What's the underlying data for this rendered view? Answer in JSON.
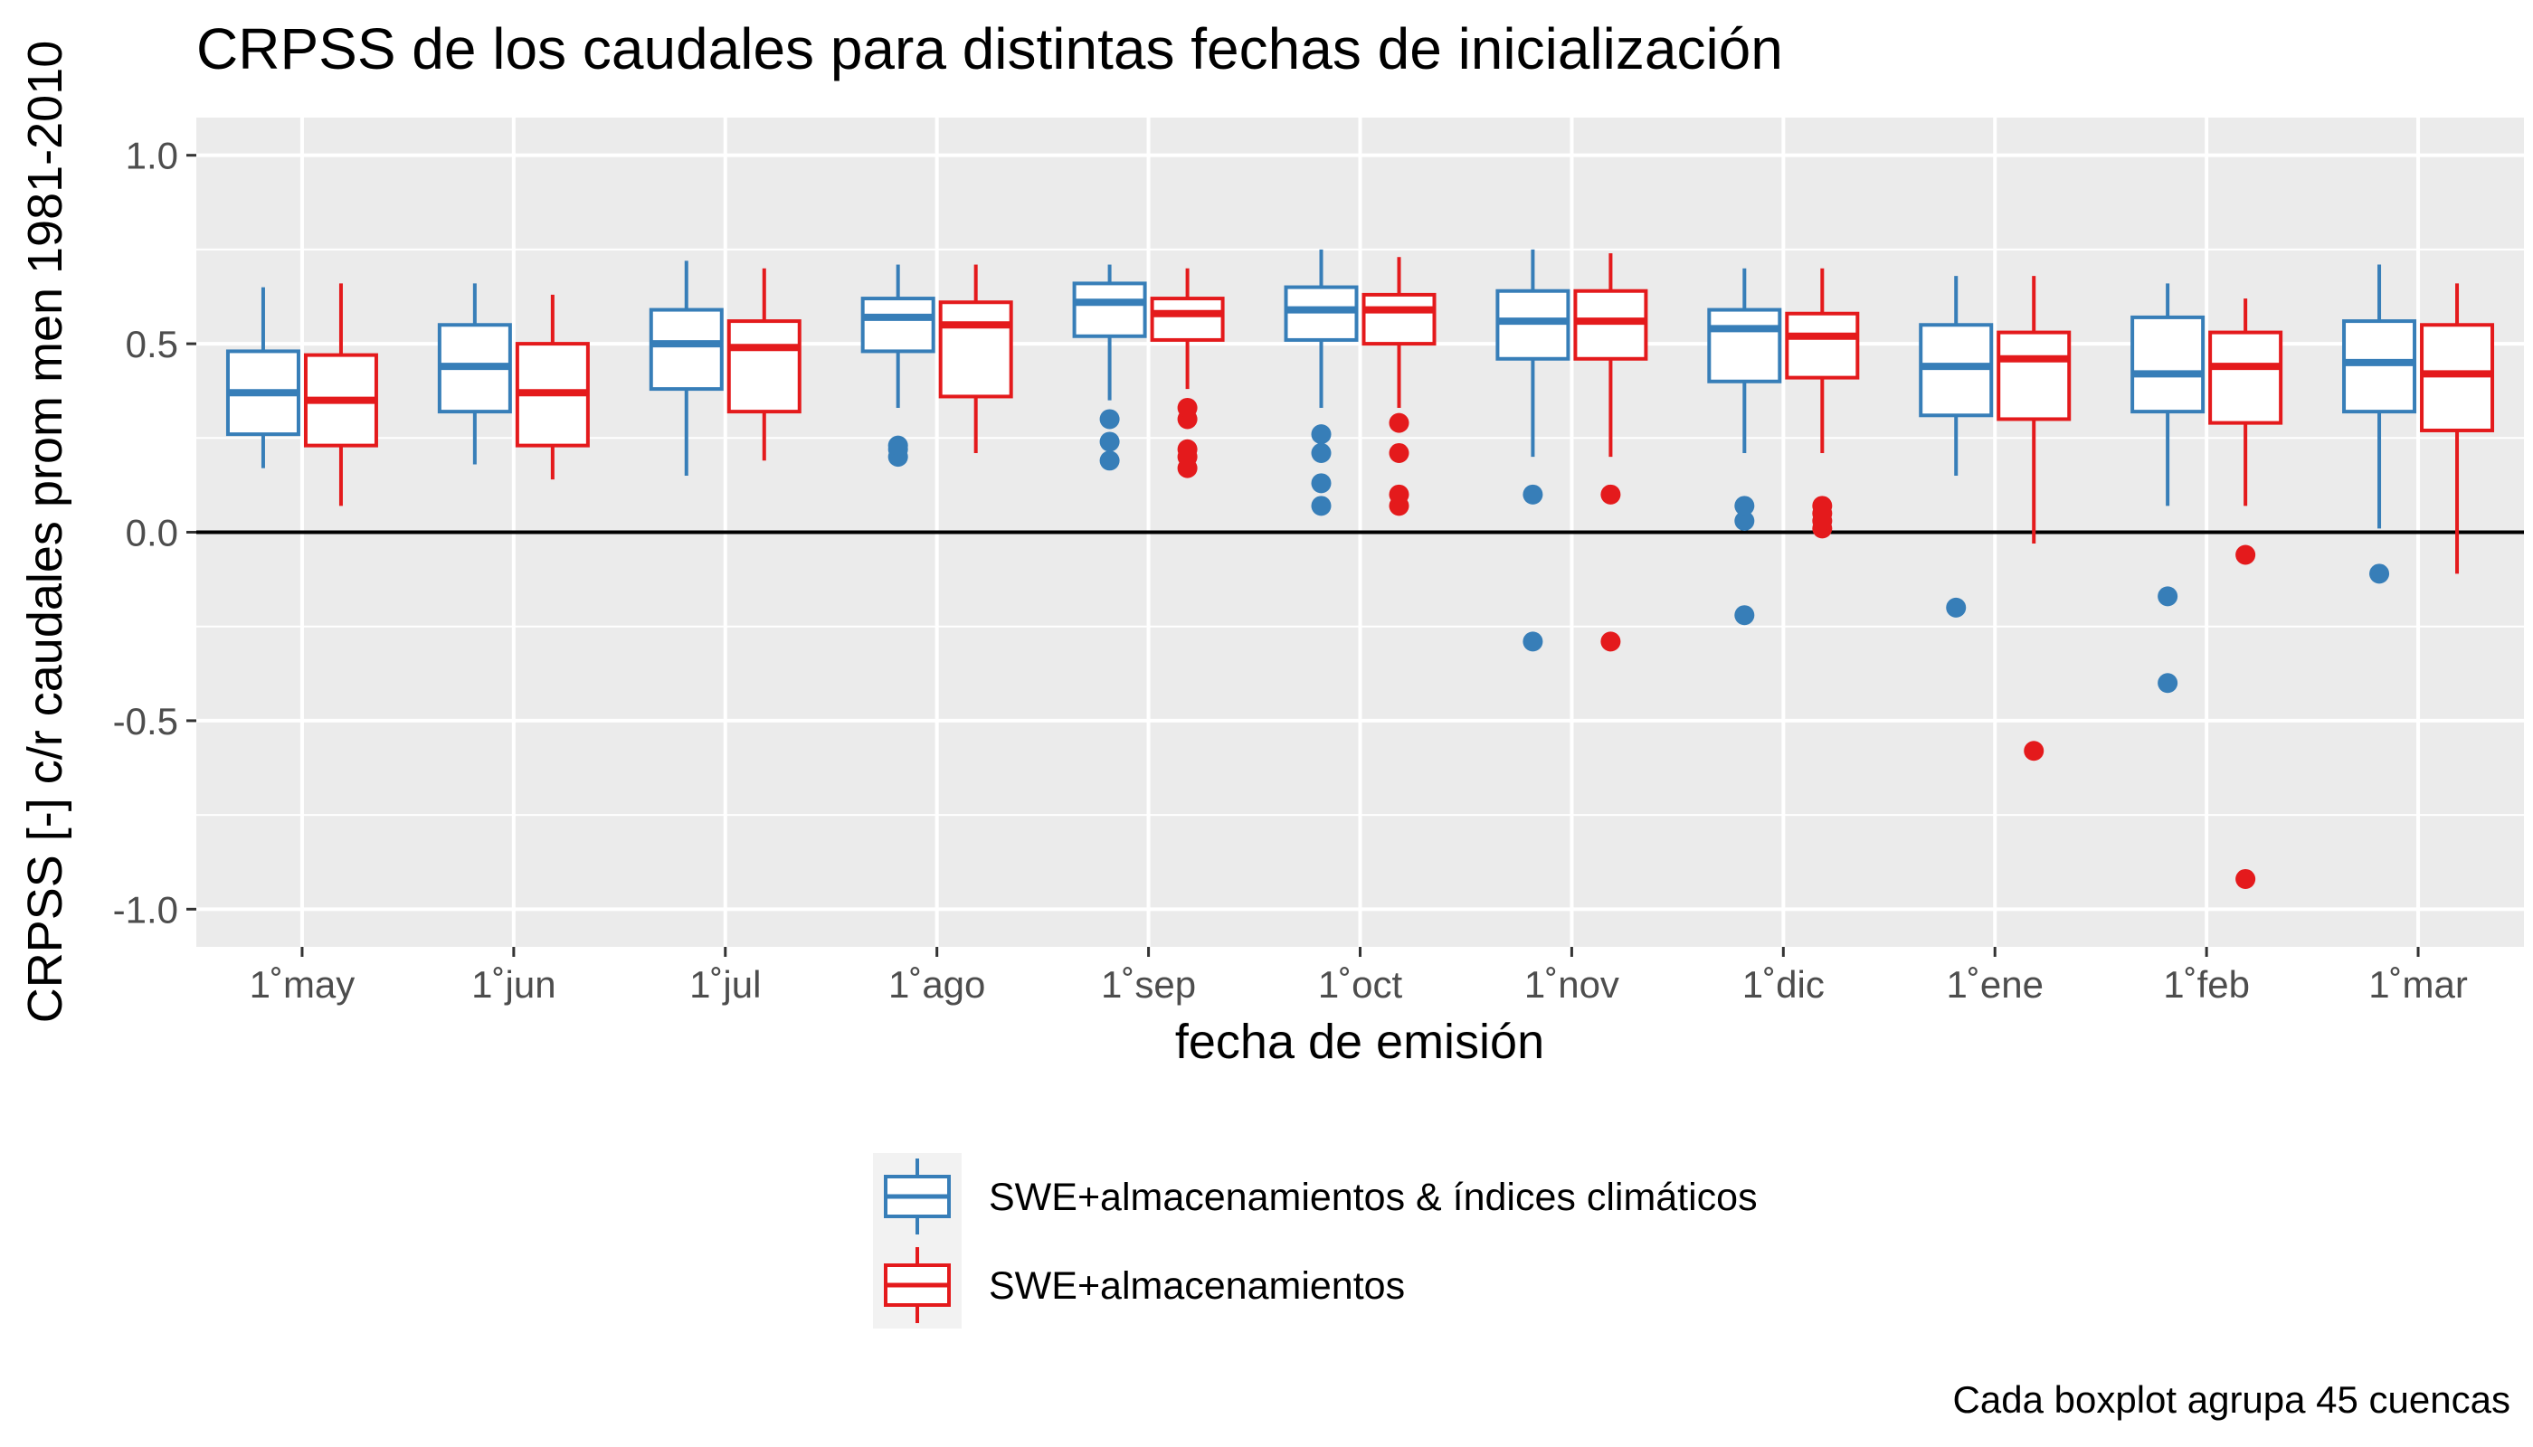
{
  "chart_data": {
    "type": "boxplot",
    "title": "CRPSS de los caudales para distintas fechas de inicialización",
    "xlabel": "fecha de emisión",
    "ylabel": "CRPSS [-] c/r caudales prom men 1981-2010",
    "caption": "Cada boxplot agrupa 45 cuencas",
    "ylim": [
      -1.1,
      1.1
    ],
    "yticks": [
      -1.0,
      -0.5,
      0.0,
      0.5,
      1.0
    ],
    "ytick_labels": [
      "-1.0",
      "-0.5",
      "0.0",
      "0.5",
      "1.0"
    ],
    "reference_line": 0,
    "grid": true,
    "legend_position": "bottom",
    "categories": [
      "1˚may",
      "1˚jun",
      "1˚jul",
      "1˚ago",
      "1˚sep",
      "1˚oct",
      "1˚nov",
      "1˚dic",
      "1˚ene",
      "1˚feb",
      "1˚mar"
    ],
    "series": [
      {
        "name": "SWE+almacenamientos & índices climáticos",
        "color": "#377EB8",
        "boxes": [
          {
            "whisker_low": 0.17,
            "q1": 0.26,
            "median": 0.37,
            "q3": 0.48,
            "whisker_high": 0.65,
            "outliers": []
          },
          {
            "whisker_low": 0.18,
            "q1": 0.32,
            "median": 0.44,
            "q3": 0.55,
            "whisker_high": 0.66,
            "outliers": []
          },
          {
            "whisker_low": 0.15,
            "q1": 0.38,
            "median": 0.5,
            "q3": 0.59,
            "whisker_high": 0.72,
            "outliers": []
          },
          {
            "whisker_low": 0.33,
            "q1": 0.48,
            "median": 0.57,
            "q3": 0.62,
            "whisker_high": 0.71,
            "outliers": [
              0.2,
              0.22,
              0.23
            ]
          },
          {
            "whisker_low": 0.35,
            "q1": 0.52,
            "median": 0.61,
            "q3": 0.66,
            "whisker_high": 0.71,
            "outliers": [
              0.19,
              0.24,
              0.3
            ]
          },
          {
            "whisker_low": 0.33,
            "q1": 0.51,
            "median": 0.59,
            "q3": 0.65,
            "whisker_high": 0.75,
            "outliers": [
              0.07,
              0.13,
              0.21,
              0.26
            ]
          },
          {
            "whisker_low": 0.2,
            "q1": 0.46,
            "median": 0.56,
            "q3": 0.64,
            "whisker_high": 0.75,
            "outliers": [
              -0.29,
              0.1
            ]
          },
          {
            "whisker_low": 0.21,
            "q1": 0.4,
            "median": 0.54,
            "q3": 0.59,
            "whisker_high": 0.7,
            "outliers": [
              -0.22,
              0.03,
              0.07
            ]
          },
          {
            "whisker_low": 0.15,
            "q1": 0.31,
            "median": 0.44,
            "q3": 0.55,
            "whisker_high": 0.68,
            "outliers": [
              -0.2
            ]
          },
          {
            "whisker_low": 0.07,
            "q1": 0.32,
            "median": 0.42,
            "q3": 0.57,
            "whisker_high": 0.66,
            "outliers": [
              -0.4,
              -0.17
            ]
          },
          {
            "whisker_low": 0.01,
            "q1": 0.32,
            "median": 0.45,
            "q3": 0.56,
            "whisker_high": 0.71,
            "outliers": [
              -0.11
            ]
          }
        ]
      },
      {
        "name": "SWE+almacenamientos",
        "color": "#E41A1C",
        "boxes": [
          {
            "whisker_low": 0.07,
            "q1": 0.23,
            "median": 0.35,
            "q3": 0.47,
            "whisker_high": 0.66,
            "outliers": []
          },
          {
            "whisker_low": 0.14,
            "q1": 0.23,
            "median": 0.37,
            "q3": 0.5,
            "whisker_high": 0.63,
            "outliers": []
          },
          {
            "whisker_low": 0.19,
            "q1": 0.32,
            "median": 0.49,
            "q3": 0.56,
            "whisker_high": 0.7,
            "outliers": []
          },
          {
            "whisker_low": 0.21,
            "q1": 0.36,
            "median": 0.55,
            "q3": 0.61,
            "whisker_high": 0.71,
            "outliers": []
          },
          {
            "whisker_low": 0.38,
            "q1": 0.51,
            "median": 0.58,
            "q3": 0.62,
            "whisker_high": 0.7,
            "outliers": [
              0.17,
              0.2,
              0.22,
              0.3,
              0.33
            ]
          },
          {
            "whisker_low": 0.33,
            "q1": 0.5,
            "median": 0.59,
            "q3": 0.63,
            "whisker_high": 0.73,
            "outliers": [
              0.07,
              0.1,
              0.21,
              0.29
            ]
          },
          {
            "whisker_low": 0.2,
            "q1": 0.46,
            "median": 0.56,
            "q3": 0.64,
            "whisker_high": 0.74,
            "outliers": [
              -0.29,
              0.1
            ]
          },
          {
            "whisker_low": 0.21,
            "q1": 0.41,
            "median": 0.52,
            "q3": 0.58,
            "whisker_high": 0.7,
            "outliers": [
              0.01,
              0.03,
              0.05,
              0.07
            ]
          },
          {
            "whisker_low": -0.03,
            "q1": 0.3,
            "median": 0.46,
            "q3": 0.53,
            "whisker_high": 0.68,
            "outliers": [
              -0.58
            ]
          },
          {
            "whisker_low": 0.07,
            "q1": 0.29,
            "median": 0.44,
            "q3": 0.53,
            "whisker_high": 0.62,
            "outliers": [
              -0.92,
              -0.06
            ]
          },
          {
            "whisker_low": -0.11,
            "q1": 0.27,
            "median": 0.42,
            "q3": 0.55,
            "whisker_high": 0.66,
            "outliers": []
          }
        ]
      }
    ]
  }
}
